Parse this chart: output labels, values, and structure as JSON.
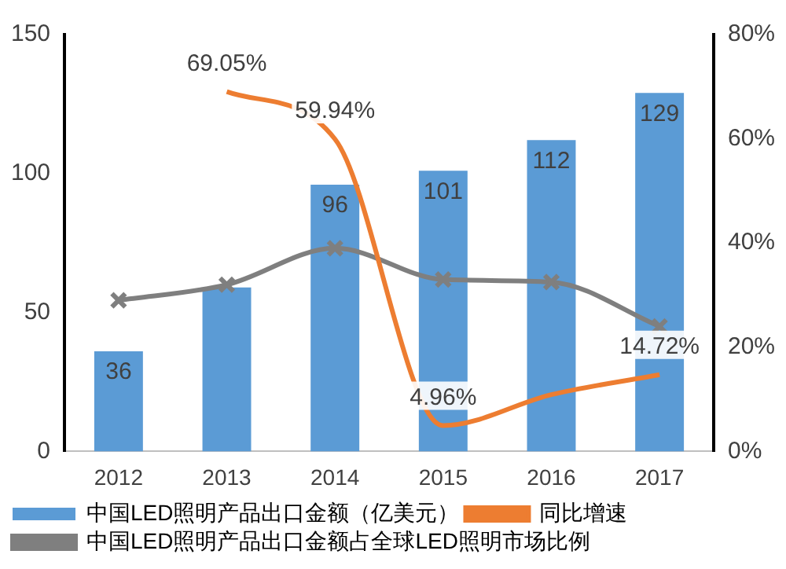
{
  "chart_data": {
    "type": "bar",
    "categories": [
      "2012",
      "2013",
      "2014",
      "2015",
      "2016",
      "2017"
    ],
    "series": [
      {
        "name": "中国LED照明产品出口金额（亿美元）",
        "color": "#5b9bd5",
        "values": [
          36,
          59,
          96,
          101,
          112,
          129
        ],
        "value_labels": [
          "36",
          null,
          "96",
          "101",
          "112",
          "129"
        ]
      },
      {
        "type": "line",
        "name": "同比增速",
        "color": "#ed7d31",
        "axis": "y2",
        "marker": "none",
        "values": [
          null,
          69.05,
          59.94,
          4.96,
          10.9,
          14.72
        ],
        "value_labels": [
          null,
          "69.05%",
          "59.94%",
          "4.96%",
          null,
          "14.72%"
        ]
      },
      {
        "type": "line",
        "name": "中国LED照明产品出口金额占全球LED照明市场比例",
        "color": "#7f7f7f",
        "axis": "y2",
        "marker": "cross",
        "values": [
          29,
          32,
          39,
          33,
          32.5,
          24
        ]
      }
    ],
    "ylim": [
      0,
      150
    ],
    "yticks": [
      0,
      50,
      100,
      150
    ],
    "y2lim": [
      0,
      80
    ],
    "y2ticks": [
      {
        "value": 0,
        "label": "0%"
      },
      {
        "value": 20,
        "label": "20%"
      },
      {
        "value": 40,
        "label": "40%"
      },
      {
        "value": 60,
        "label": "60%"
      },
      {
        "value": 80,
        "label": "80%"
      }
    ],
    "grid": false,
    "legend": "bottom"
  }
}
